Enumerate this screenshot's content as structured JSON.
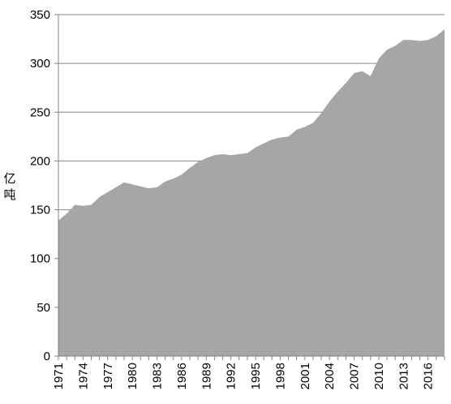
{
  "chart_data": {
    "type": "area",
    "ylabel": "亿吨",
    "xlabel": "",
    "ylim": [
      0,
      350
    ],
    "yticks": [
      0,
      50,
      100,
      150,
      200,
      250,
      300,
      350
    ],
    "xtick_labels": [
      "1971",
      "1974",
      "1977",
      "1980",
      "1983",
      "1986",
      "1989",
      "1992",
      "1995",
      "1998",
      "2001",
      "2004",
      "2007",
      "2010",
      "2013",
      "2016"
    ],
    "grid": "horizontal",
    "legend": "none",
    "series": [
      {
        "color": "#a6a6a6",
        "x": [
          1971,
          1972,
          1973,
          1974,
          1975,
          1976,
          1977,
          1978,
          1979,
          1980,
          1981,
          1982,
          1983,
          1984,
          1985,
          1986,
          1987,
          1988,
          1989,
          1990,
          1991,
          1992,
          1993,
          1994,
          1995,
          1996,
          1997,
          1998,
          1999,
          2000,
          2001,
          2002,
          2003,
          2004,
          2005,
          2006,
          2007,
          2008,
          2009,
          2010,
          2011,
          2012,
          2013,
          2014,
          2015,
          2016,
          2017,
          2018
        ],
        "values": [
          139,
          146,
          155,
          154,
          155,
          163,
          168,
          173,
          178,
          176,
          174,
          172,
          173,
          179,
          182,
          186,
          193,
          199,
          203,
          206,
          207,
          206,
          207,
          208,
          214,
          218,
          222,
          224,
          225,
          232,
          235,
          239,
          249,
          261,
          271,
          280,
          290,
          292,
          287,
          305,
          314,
          318,
          324,
          324,
          323,
          324,
          328,
          335
        ]
      }
    ]
  }
}
